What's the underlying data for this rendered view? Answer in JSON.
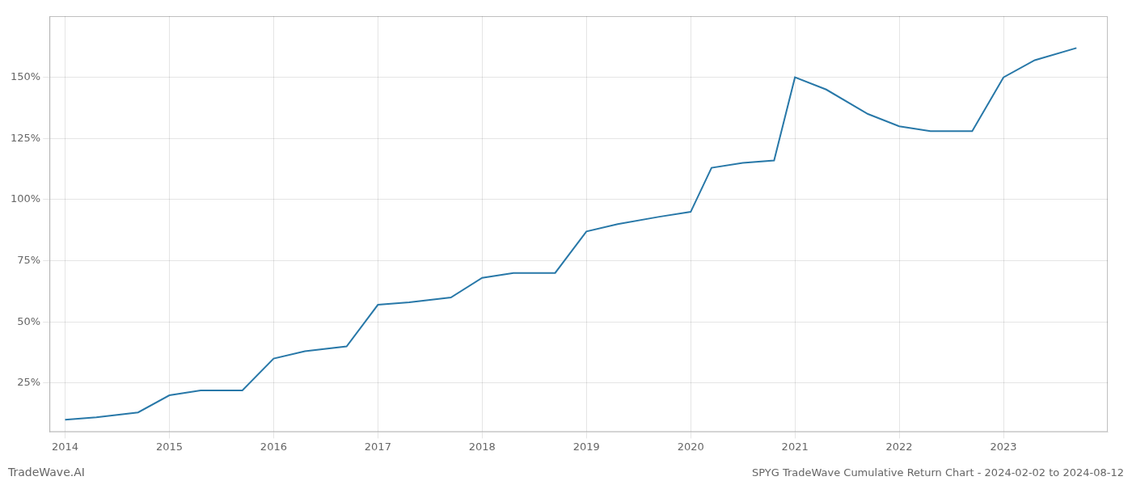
{
  "chart_data": {
    "type": "line",
    "title": "SPYG TradeWave Cumulative Return Chart - 2024-02-02 to 2024-08-12",
    "annotations": [
      "TradeWave.AI"
    ],
    "x": [
      2014.0,
      2014.3,
      2014.7,
      2015.0,
      2015.3,
      2015.7,
      2016.0,
      2016.3,
      2016.7,
      2017.0,
      2017.3,
      2017.7,
      2018.0,
      2018.3,
      2018.7,
      2019.0,
      2019.3,
      2019.7,
      2020.0,
      2020.2,
      2020.5,
      2020.8,
      2021.0,
      2021.3,
      2021.7,
      2022.0,
      2022.3,
      2022.7,
      2023.0,
      2023.3,
      2023.7
    ],
    "values": [
      10,
      11,
      13,
      20,
      22,
      22,
      35,
      38,
      40,
      57,
      58,
      60,
      68,
      70,
      70,
      87,
      90,
      93,
      95,
      113,
      115,
      116,
      150,
      145,
      135,
      130,
      128,
      128,
      150,
      157,
      162
    ],
    "color": "#2878a8",
    "xlim": [
      2013.85,
      2024.0
    ],
    "xticks": [
      2014,
      2015,
      2016,
      2017,
      2018,
      2019,
      2020,
      2021,
      2022,
      2023
    ],
    "ylim": [
      5,
      175
    ],
    "yticks": [
      {
        "value": 25,
        "label": "25%"
      },
      {
        "value": 50,
        "label": "50%"
      },
      {
        "value": 75,
        "label": "75%"
      },
      {
        "value": 100,
        "label": "100%"
      },
      {
        "value": 125,
        "label": "125%"
      },
      {
        "value": 150,
        "label": "150%"
      }
    ],
    "grid": true
  }
}
